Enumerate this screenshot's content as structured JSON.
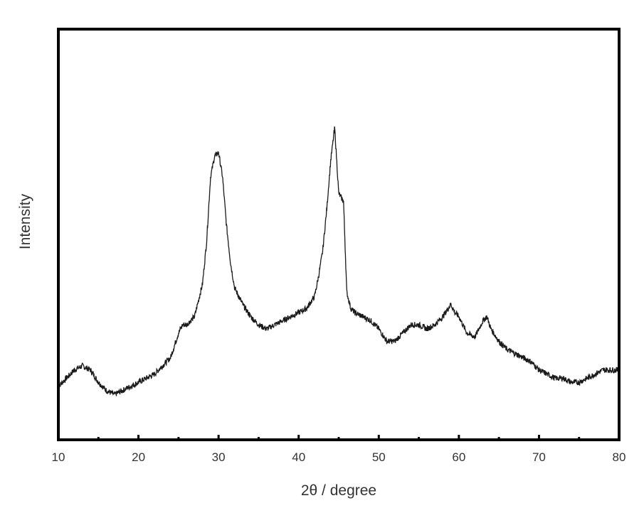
{
  "chart_data": {
    "type": "line",
    "title": "",
    "xlabel": "2θ / degree",
    "ylabel": "Intensity",
    "xlim": [
      10,
      80
    ],
    "ylim": [
      0,
      100
    ],
    "y_tick_labels": false,
    "x_ticks": [
      10,
      20,
      30,
      40,
      50,
      60,
      70,
      80
    ],
    "x_tick_labels": [
      "10",
      "20",
      "30",
      "40",
      "50",
      "60",
      "70",
      "80"
    ],
    "grid": false,
    "legend": "none",
    "colors": {
      "line": "#1a1a1a",
      "frame": "#000000",
      "text": "#333333"
    },
    "series": [
      {
        "x": [
          10,
          11,
          12,
          13,
          14,
          15,
          16,
          17,
          18,
          19,
          20,
          21,
          22,
          23,
          24,
          25,
          25.5,
          26,
          27,
          28,
          28.5,
          29,
          29.5,
          30,
          30.5,
          31,
          31.5,
          32,
          33,
          34,
          35,
          36,
          37,
          38,
          39,
          40,
          41,
          42,
          42.5,
          43,
          43.5,
          44,
          44.5,
          45,
          45.3,
          45.6,
          46,
          46.5,
          47,
          48,
          49,
          50,
          51,
          52,
          53,
          54,
          55,
          56,
          57,
          58,
          59,
          59.5,
          60,
          61,
          62,
          63,
          63.5,
          64,
          65,
          66,
          67,
          68,
          69,
          70,
          71,
          72,
          73,
          74,
          75,
          76,
          77,
          78,
          79,
          80
        ],
        "values": [
          13,
          15,
          17,
          18,
          17,
          14,
          12,
          11,
          12,
          13,
          14,
          15,
          16,
          18,
          20,
          26,
          28,
          28,
          30,
          38,
          48,
          64,
          69,
          70,
          64,
          52,
          43,
          37,
          33,
          30,
          28,
          27,
          28,
          29,
          30,
          31,
          32,
          35,
          40,
          46,
          56,
          68,
          76,
          60,
          59,
          58,
          36,
          32,
          31,
          30,
          29,
          27,
          24,
          24,
          26,
          28,
          28,
          27,
          28,
          30,
          33,
          31,
          30,
          26,
          25,
          29,
          30,
          27,
          24,
          22,
          21,
          20,
          19,
          17,
          16,
          15,
          15,
          14,
          14,
          15,
          16,
          17,
          17,
          17
        ]
      }
    ]
  }
}
